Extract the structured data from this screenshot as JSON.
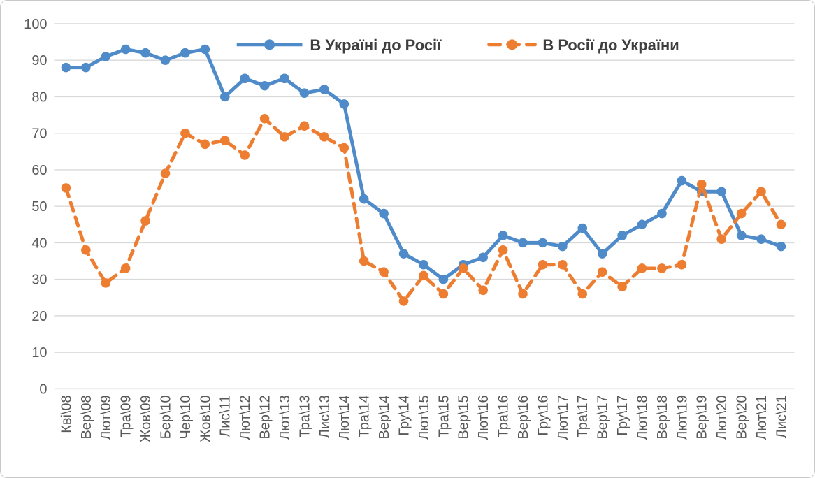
{
  "chart_data": {
    "type": "line",
    "title": "",
    "xlabel": "",
    "ylabel": "",
    "ylim": [
      0,
      100
    ],
    "yticks": [
      0,
      10,
      20,
      30,
      40,
      50,
      60,
      70,
      80,
      90,
      100
    ],
    "grid": true,
    "legend_position": "top-center",
    "categories": [
      "Кві\\08",
      "Вер\\08",
      "Лют\\09",
      "Тра\\09",
      "Жов\\09",
      "Бер\\10",
      "Чер\\10",
      "Жов\\10",
      "Лис\\11",
      "Лют\\12",
      "Вер\\12",
      "Лют\\13",
      "Тра\\13",
      "Лис\\13",
      "Лют\\14",
      "Тра\\14",
      "Вер\\14",
      "Гру\\14",
      "Лют\\15",
      "Тра\\15",
      "Вер\\15",
      "Лют\\16",
      "Тра\\16",
      "Вер\\16",
      "Гру\\16",
      "Лют\\17",
      "Тра\\17",
      "Вер\\17",
      "Гру\\17",
      "Лют\\18",
      "Вер\\18",
      "Лют\\19",
      "Вер\\19",
      "Лют\\20",
      "Вер\\20",
      "Лют\\21",
      "Лис\\21"
    ],
    "series": [
      {
        "name": "В Україні до Росії",
        "color": "#4f8bc9",
        "line_style": "solid",
        "marker": "circle",
        "values": [
          88,
          88,
          91,
          93,
          92,
          90,
          92,
          93,
          80,
          85,
          83,
          85,
          81,
          82,
          78,
          52,
          48,
          37,
          34,
          30,
          34,
          36,
          42,
          40,
          40,
          39,
          44,
          37,
          42,
          45,
          48,
          57,
          54,
          54,
          42,
          41,
          39
        ]
      },
      {
        "name": "В Росії до України",
        "color": "#ed7d31",
        "line_style": "dashed",
        "marker": "circle",
        "values": [
          55,
          38,
          29,
          33,
          46,
          59,
          70,
          67,
          68,
          64,
          74,
          69,
          72,
          69,
          66,
          35,
          32,
          24,
          31,
          26,
          33,
          27,
          38,
          26,
          34,
          34,
          26,
          32,
          28,
          33,
          33,
          34,
          56,
          41,
          48,
          54,
          45
        ]
      }
    ],
    "colors": {
      "gridline": "#d9d9d9",
      "axis_text": "#595959",
      "legend_text": "#3f3f3f",
      "background": "#ffffff"
    }
  }
}
